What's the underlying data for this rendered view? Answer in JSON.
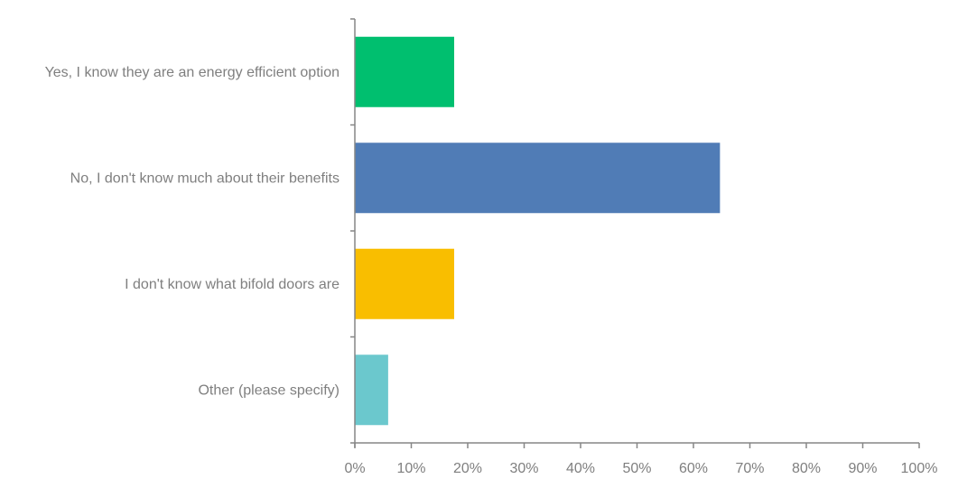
{
  "chart_data": {
    "type": "bar",
    "orientation": "horizontal",
    "categories": [
      "Yes, I know they are an energy efficient option",
      "No, I don't know much about their benefits",
      "I don't know what bifold doors are",
      "Other (please specify)"
    ],
    "values": [
      17.6,
      64.7,
      17.6,
      5.9
    ],
    "colors": [
      "#00bf6f",
      "#507cb6",
      "#f9be00",
      "#6bc8cd"
    ],
    "xlim": [
      0,
      100
    ],
    "xticks": [
      "0%",
      "10%",
      "20%",
      "30%",
      "40%",
      "50%",
      "60%",
      "70%",
      "80%",
      "90%",
      "100%"
    ],
    "grid": false,
    "title": "",
    "xlabel": "",
    "ylabel": ""
  }
}
